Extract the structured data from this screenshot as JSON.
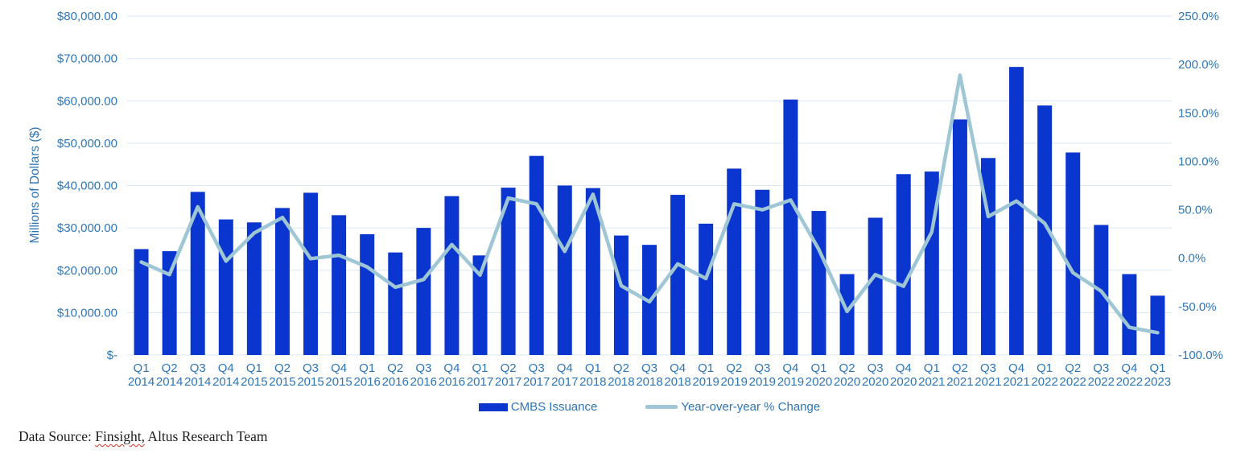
{
  "chart_data": {
    "type": "combo",
    "categories": [
      {
        "quarter": "Q1",
        "year": "2014"
      },
      {
        "quarter": "Q2",
        "year": "2014"
      },
      {
        "quarter": "Q3",
        "year": "2014"
      },
      {
        "quarter": "Q4",
        "year": "2014"
      },
      {
        "quarter": "Q1",
        "year": "2015"
      },
      {
        "quarter": "Q2",
        "year": "2015"
      },
      {
        "quarter": "Q3",
        "year": "2015"
      },
      {
        "quarter": "Q4",
        "year": "2015"
      },
      {
        "quarter": "Q1",
        "year": "2016"
      },
      {
        "quarter": "Q2",
        "year": "2016"
      },
      {
        "quarter": "Q3",
        "year": "2016"
      },
      {
        "quarter": "Q4",
        "year": "2016"
      },
      {
        "quarter": "Q1",
        "year": "2017"
      },
      {
        "quarter": "Q2",
        "year": "2017"
      },
      {
        "quarter": "Q3",
        "year": "2017"
      },
      {
        "quarter": "Q4",
        "year": "2017"
      },
      {
        "quarter": "Q1",
        "year": "2018"
      },
      {
        "quarter": "Q2",
        "year": "2018"
      },
      {
        "quarter": "Q3",
        "year": "2018"
      },
      {
        "quarter": "Q4",
        "year": "2018"
      },
      {
        "quarter": "Q1",
        "year": "2019"
      },
      {
        "quarter": "Q2",
        "year": "2019"
      },
      {
        "quarter": "Q3",
        "year": "2019"
      },
      {
        "quarter": "Q4",
        "year": "2019"
      },
      {
        "quarter": "Q1",
        "year": "2020"
      },
      {
        "quarter": "Q2",
        "year": "2020"
      },
      {
        "quarter": "Q3",
        "year": "2020"
      },
      {
        "quarter": "Q4",
        "year": "2020"
      },
      {
        "quarter": "Q1",
        "year": "2021"
      },
      {
        "quarter": "Q2",
        "year": "2021"
      },
      {
        "quarter": "Q3",
        "year": "2021"
      },
      {
        "quarter": "Q4",
        "year": "2021"
      },
      {
        "quarter": "Q1",
        "year": "2022"
      },
      {
        "quarter": "Q2",
        "year": "2022"
      },
      {
        "quarter": "Q3",
        "year": "2022"
      },
      {
        "quarter": "Q4",
        "year": "2022"
      },
      {
        "quarter": "Q1",
        "year": "2023"
      }
    ],
    "series": [
      {
        "name": "CMBS Issuance",
        "type": "bar",
        "axis": "left",
        "color": "#0A35CE",
        "values": [
          25000,
          24500,
          38500,
          32000,
          31300,
          34700,
          38300,
          33000,
          28500,
          24200,
          30000,
          37500,
          23500,
          39500,
          47000,
          40000,
          39400,
          28200,
          26000,
          37800,
          31000,
          44000,
          39000,
          60300,
          34000,
          19100,
          32400,
          42700,
          43300,
          55600,
          46500,
          68000,
          58900,
          47800,
          30700,
          19100,
          14000
        ]
      },
      {
        "name": "Year-over-year % Change",
        "type": "line",
        "axis": "right",
        "color": "#9EC6D4",
        "values": [
          -4,
          -17,
          53,
          -3,
          26,
          42,
          -0.5,
          3,
          -9,
          -30,
          -22,
          14,
          -17.5,
          62,
          56,
          7,
          66,
          -28.5,
          -45,
          -6,
          -21,
          56,
          50,
          60,
          9,
          -55,
          -17,
          -29,
          27,
          189,
          43,
          59,
          36,
          -15,
          -34,
          -71.5,
          -77
        ]
      }
    ],
    "left_axis": {
      "title": "Millions of Dollars ($)",
      "min": 0,
      "max": 80000,
      "tick_labels": [
        "$80,000.00",
        "$70,000.00",
        "$60,000.00",
        "$50,000.00",
        "$40,000.00",
        "$30,000.00",
        "$20,000.00",
        "$10,000.00",
        "$-"
      ]
    },
    "right_axis": {
      "min": -100,
      "max": 250,
      "tick_labels": [
        "250.0%",
        "200.0%",
        "150.0%",
        "100.0%",
        "50.0%",
        "0.0%",
        "-50.0%",
        "-100.0%"
      ]
    },
    "grid": "horizontal-only",
    "legend_position": "bottom",
    "colors": {
      "axis_text": "#2E75B6",
      "gridline": "#DAE8F5",
      "bar": "#0A35CE",
      "line": "#9EC6D4"
    }
  },
  "footer": {
    "prefix": "Data Source: ",
    "underlined": "Finsight,",
    "suffix": " Altus Research Team"
  }
}
